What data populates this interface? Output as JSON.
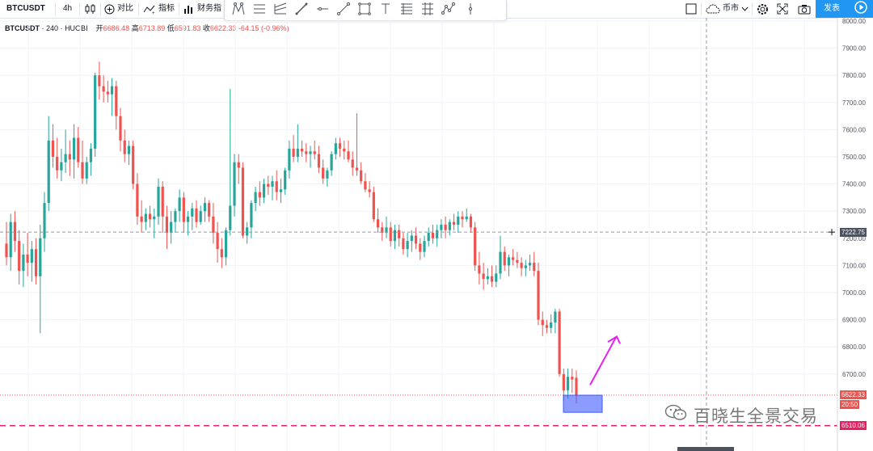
{
  "toolbar": {
    "symbol": "BTCUSDT",
    "interval": "4h",
    "compare_label": "对比",
    "indicators_label": "指标",
    "financials_label": "财务指",
    "currency_label": "币市",
    "publish_label": "发表",
    "icons": [
      "candles-icon",
      "compare-plus-icon",
      "indicators-icon",
      "financials-icon",
      "cursor-icon",
      "trend-line-icon",
      "pitchfork-icon",
      "brush-icon",
      "horizontal-line-icon",
      "ray-icon",
      "rectangle-icon",
      "text-icon",
      "fib-retracement-icon",
      "long-position-icon",
      "pattern-icon",
      "measure-icon",
      "layout-icon",
      "cloud-icon",
      "settings-icon",
      "fullscreen-icon",
      "camera-icon",
      "play-icon"
    ]
  },
  "legend": {
    "symbol": "BTCUSDT",
    "interval": "240",
    "exchange": "HUOBI",
    "open_label": "开",
    "open": "6686.48",
    "high_label": "高",
    "high": "6713.89",
    "low_label": "低",
    "low": "6591.83",
    "close_label": "收",
    "close": "6622.33",
    "change": "-64.15",
    "change_pct": "(-0.96%)"
  },
  "price_tags": {
    "crosshair": "7222.75",
    "last": "6622.33",
    "countdown": "20:50",
    "support": "6510.06"
  },
  "watermark": "百晓生全景交易",
  "colors": {
    "up": "#26a69a",
    "down": "#ef5350",
    "accent": "#2196f3",
    "support_line": "#e91e63",
    "box": "#3d5afe",
    "arrow": "#e91ef0"
  },
  "chart_data": {
    "type": "candlestick",
    "y_axis_labels": [
      "8000.00",
      "7900.00",
      "7800.00",
      "7700.00",
      "7600.00",
      "7500.00",
      "7400.00",
      "7300.00",
      "7200.00",
      "7100.00",
      "7000.00",
      "6900.00",
      "6800.00",
      "6700.00"
    ],
    "ylim": [
      6460,
      8010
    ],
    "grid": true,
    "candles": [
      [
        7180,
        7260,
        7100,
        7130
      ],
      [
        7130,
        7290,
        7080,
        7260
      ],
      [
        7260,
        7300,
        7150,
        7190
      ],
      [
        7190,
        7230,
        7030,
        7080
      ],
      [
        7080,
        7180,
        7020,
        7140
      ],
      [
        7140,
        7220,
        7060,
        7110
      ],
      [
        7110,
        7190,
        7040,
        7160
      ],
      [
        7160,
        7200,
        7030,
        7060
      ],
      [
        7060,
        7250,
        6850,
        7200
      ],
      [
        7200,
        7370,
        7150,
        7330
      ],
      [
        7330,
        7650,
        7300,
        7560
      ],
      [
        7560,
        7620,
        7460,
        7500
      ],
      [
        7500,
        7570,
        7420,
        7450
      ],
      [
        7450,
        7530,
        7410,
        7480
      ],
      [
        7480,
        7600,
        7440,
        7510
      ],
      [
        7510,
        7560,
        7430,
        7490
      ],
      [
        7490,
        7620,
        7420,
        7570
      ],
      [
        7570,
        7610,
        7460,
        7480
      ],
      [
        7480,
        7560,
        7400,
        7420
      ],
      [
        7420,
        7500,
        7400,
        7480
      ],
      [
        7480,
        7550,
        7430,
        7530
      ],
      [
        7530,
        7810,
        7500,
        7800
      ],
      [
        7800,
        7850,
        7710,
        7760
      ],
      [
        7760,
        7800,
        7700,
        7740
      ],
      [
        7740,
        7780,
        7700,
        7730
      ],
      [
        7730,
        7790,
        7650,
        7760
      ],
      [
        7760,
        7780,
        7600,
        7650
      ],
      [
        7650,
        7680,
        7520,
        7560
      ],
      [
        7560,
        7600,
        7480,
        7510
      ],
      [
        7510,
        7560,
        7470,
        7540
      ],
      [
        7540,
        7560,
        7380,
        7400
      ],
      [
        7400,
        7440,
        7250,
        7280
      ],
      [
        7280,
        7340,
        7220,
        7260
      ],
      [
        7260,
        7310,
        7230,
        7290
      ],
      [
        7290,
        7320,
        7240,
        7270
      ],
      [
        7270,
        7310,
        7200,
        7280
      ],
      [
        7280,
        7420,
        7250,
        7390
      ],
      [
        7390,
        7410,
        7220,
        7280
      ],
      [
        7280,
        7320,
        7160,
        7220
      ],
      [
        7220,
        7300,
        7180,
        7260
      ],
      [
        7260,
        7310,
        7220,
        7300
      ],
      [
        7300,
        7380,
        7260,
        7350
      ],
      [
        7350,
        7370,
        7220,
        7260
      ],
      [
        7260,
        7300,
        7210,
        7280
      ],
      [
        7280,
        7330,
        7230,
        7310
      ],
      [
        7310,
        7340,
        7240,
        7260
      ],
      [
        7260,
        7320,
        7250,
        7300
      ],
      [
        7300,
        7350,
        7260,
        7330
      ],
      [
        7330,
        7340,
        7260,
        7280
      ],
      [
        7280,
        7330,
        7180,
        7220
      ],
      [
        7220,
        7260,
        7110,
        7160
      ],
      [
        7160,
        7200,
        7090,
        7130
      ],
      [
        7130,
        7240,
        7100,
        7230
      ],
      [
        7230,
        7750,
        7210,
        7320
      ],
      [
        7320,
        7510,
        7280,
        7480
      ],
      [
        7480,
        7510,
        7400,
        7460
      ],
      [
        7460,
        7480,
        7200,
        7210
      ],
      [
        7210,
        7260,
        7180,
        7240
      ],
      [
        7240,
        7340,
        7200,
        7330
      ],
      [
        7330,
        7390,
        7300,
        7370
      ],
      [
        7370,
        7410,
        7320,
        7350
      ],
      [
        7350,
        7420,
        7330,
        7400
      ],
      [
        7400,
        7430,
        7360,
        7390
      ],
      [
        7390,
        7430,
        7340,
        7410
      ],
      [
        7410,
        7450,
        7340,
        7370
      ],
      [
        7370,
        7420,
        7330,
        7380
      ],
      [
        7380,
        7460,
        7360,
        7450
      ],
      [
        7450,
        7560,
        7420,
        7530
      ],
      [
        7530,
        7580,
        7480,
        7500
      ],
      [
        7500,
        7620,
        7480,
        7530
      ],
      [
        7530,
        7560,
        7500,
        7520
      ],
      [
        7520,
        7550,
        7480,
        7510
      ],
      [
        7510,
        7540,
        7460,
        7520
      ],
      [
        7520,
        7560,
        7490,
        7510
      ],
      [
        7510,
        7540,
        7440,
        7460
      ],
      [
        7460,
        7490,
        7400,
        7420
      ],
      [
        7420,
        7460,
        7390,
        7450
      ],
      [
        7450,
        7520,
        7430,
        7510
      ],
      [
        7510,
        7570,
        7490,
        7550
      ],
      [
        7550,
        7570,
        7500,
        7530
      ],
      [
        7530,
        7560,
        7490,
        7520
      ],
      [
        7520,
        7560,
        7480,
        7490
      ],
      [
        7490,
        7520,
        7430,
        7460
      ],
      [
        7460,
        7660,
        7430,
        7450
      ],
      [
        7450,
        7480,
        7400,
        7410
      ],
      [
        7410,
        7440,
        7370,
        7380
      ],
      [
        7380,
        7410,
        7350,
        7370
      ],
      [
        7370,
        7390,
        7260,
        7270
      ],
      [
        7270,
        7310,
        7220,
        7240
      ],
      [
        7240,
        7260,
        7190,
        7220
      ],
      [
        7220,
        7280,
        7200,
        7240
      ],
      [
        7240,
        7260,
        7170,
        7190
      ],
      [
        7190,
        7250,
        7160,
        7230
      ],
      [
        7230,
        7250,
        7170,
        7200
      ],
      [
        7200,
        7220,
        7140,
        7160
      ],
      [
        7160,
        7220,
        7130,
        7190
      ],
      [
        7190,
        7230,
        7150,
        7210
      ],
      [
        7210,
        7240,
        7160,
        7180
      ],
      [
        7180,
        7200,
        7120,
        7150
      ],
      [
        7150,
        7210,
        7130,
        7190
      ],
      [
        7190,
        7240,
        7170,
        7220
      ],
      [
        7220,
        7250,
        7180,
        7200
      ],
      [
        7200,
        7250,
        7170,
        7230
      ],
      [
        7230,
        7270,
        7200,
        7250
      ],
      [
        7250,
        7280,
        7200,
        7230
      ],
      [
        7230,
        7270,
        7210,
        7260
      ],
      [
        7260,
        7290,
        7230,
        7250
      ],
      [
        7250,
        7300,
        7220,
        7280
      ],
      [
        7280,
        7300,
        7240,
        7270
      ],
      [
        7270,
        7310,
        7260,
        7280
      ],
      [
        7280,
        7290,
        7220,
        7240
      ],
      [
        7240,
        7260,
        7080,
        7100
      ],
      [
        7100,
        7150,
        7030,
        7070
      ],
      [
        7070,
        7110,
        7010,
        7050
      ],
      [
        7050,
        7090,
        7030,
        7060
      ],
      [
        7060,
        7100,
        7020,
        7040
      ],
      [
        7040,
        7100,
        7020,
        7070
      ],
      [
        7070,
        7210,
        7050,
        7150
      ],
      [
        7150,
        7170,
        7080,
        7100
      ],
      [
        7100,
        7140,
        7060,
        7130
      ],
      [
        7130,
        7160,
        7100,
        7120
      ],
      [
        7120,
        7150,
        7090,
        7110
      ],
      [
        7110,
        7130,
        7060,
        7090
      ],
      [
        7090,
        7120,
        7060,
        7100
      ],
      [
        7100,
        7140,
        7080,
        7110
      ],
      [
        7110,
        7150,
        7060,
        7080
      ],
      [
        7080,
        7110,
        6880,
        6900
      ],
      [
        6900,
        6930,
        6840,
        6880
      ],
      [
        6880,
        6900,
        6850,
        6870
      ],
      [
        6870,
        6920,
        6850,
        6890
      ],
      [
        6890,
        6940,
        6850,
        6930
      ],
      [
        6930,
        6940,
        6690,
        6700
      ],
      [
        6700,
        6720,
        6600,
        6640
      ],
      [
        6640,
        6720,
        6610,
        6690
      ],
      [
        6690,
        6720,
        6630,
        6680
      ],
      [
        6686.48,
        6713.89,
        6591.83,
        6622.33
      ]
    ],
    "crosshair_price": 7222.75,
    "last_price": 6622.33,
    "support_price": 6510.06,
    "annotations": [
      "highlight-box",
      "up-arrow"
    ]
  }
}
